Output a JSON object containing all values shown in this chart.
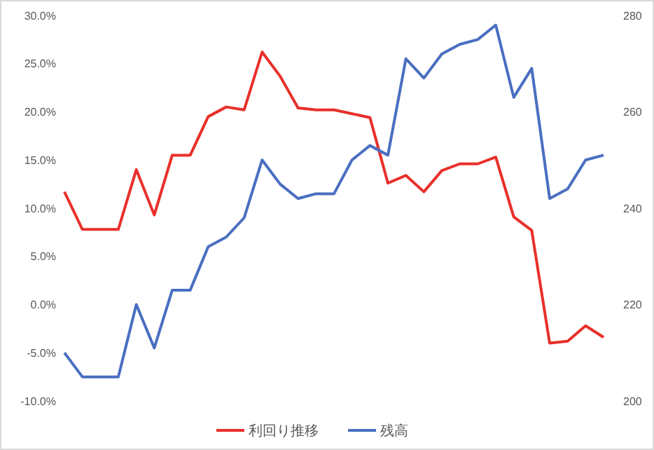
{
  "chart_data": {
    "type": "line",
    "categories": [
      null,
      null,
      null,
      null,
      null,
      null,
      null,
      null,
      null,
      null,
      null,
      null,
      null,
      null,
      null,
      null,
      null,
      null,
      null,
      null,
      null,
      null,
      null,
      null,
      null,
      null,
      null,
      null,
      null,
      null,
      null
    ],
    "series": [
      {
        "name": "利回り推移",
        "color": "#e8302a",
        "values": [
          11.7,
          7.8,
          7.8,
          7.8,
          14.0,
          9.3,
          15.5,
          15.5,
          19.5,
          20.5,
          20.2,
          26.2,
          23.7,
          20.4,
          20.2,
          20.2,
          19.8,
          19.4,
          12.6,
          13.4,
          11.7,
          13.9,
          14.6,
          14.6,
          15.3,
          9.1,
          7.7,
          -4.0,
          -3.8,
          -2.2,
          -3.4
        ]
      },
      {
        "name": "残高",
        "color": "#4a6fc1",
        "axis": "y2",
        "values": [
          210,
          205,
          205,
          205,
          220,
          211,
          223,
          223,
          232,
          234,
          238,
          250,
          245,
          242,
          243,
          243,
          250,
          253,
          251,
          271,
          267,
          272,
          274,
          275,
          278,
          263,
          269,
          242,
          244,
          250,
          251
        ]
      }
    ],
    "ylim": [
      -10,
      30
    ],
    "yticks": [
      {
        "value": -10,
        "label": "-10.0%"
      },
      {
        "value": -5,
        "label": "-5.0%"
      },
      {
        "value": 0,
        "label": "0.0%"
      },
      {
        "value": 5,
        "label": "5.0%"
      },
      {
        "value": 10,
        "label": "10.0%"
      },
      {
        "value": 15,
        "label": "15.0%"
      },
      {
        "value": 20,
        "label": "20.0%"
      },
      {
        "value": 25,
        "label": "25.0%"
      },
      {
        "value": 30,
        "label": "30.0%"
      }
    ],
    "y2lim": [
      200,
      280
    ],
    "y2ticks": [
      200,
      220,
      240,
      260,
      280
    ],
    "legend": "bottom",
    "grid": false,
    "marker": "none",
    "line_style": "solid"
  }
}
